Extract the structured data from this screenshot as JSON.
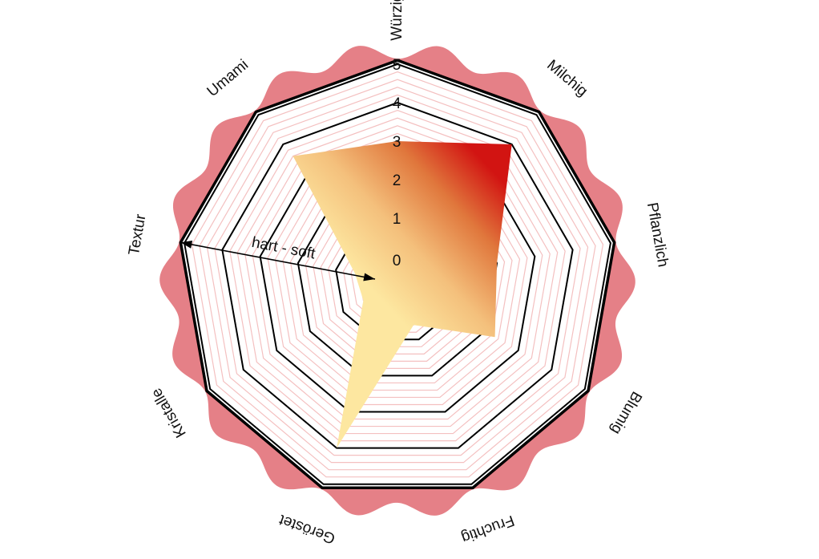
{
  "chart_data": {
    "type": "radar",
    "categories": [
      "Würzig",
      "Milchig",
      "Pflanzlich",
      "Blumig",
      "Fruchtig",
      "Geröstet",
      "Kristalle",
      "Textur",
      "Umami"
    ],
    "series": [
      {
        "values": [
          3,
          4,
          2,
          2.3,
          0.6,
          4,
          0.4,
          0.5,
          3.6
        ]
      }
    ],
    "rlim": [
      0,
      5
    ],
    "ticks": [
      "0",
      "1",
      "2",
      "3",
      "4",
      "5"
    ],
    "annotation": "hart - soft",
    "colors": {
      "fill_high": "#d21412",
      "fill_mid": "#eaa76a",
      "fill_low": "#fde7a0",
      "gridline": "#f4c0c0",
      "frame": "#000000",
      "halo_outer": "#e8868c",
      "halo_inner": "#fde4b6"
    }
  }
}
